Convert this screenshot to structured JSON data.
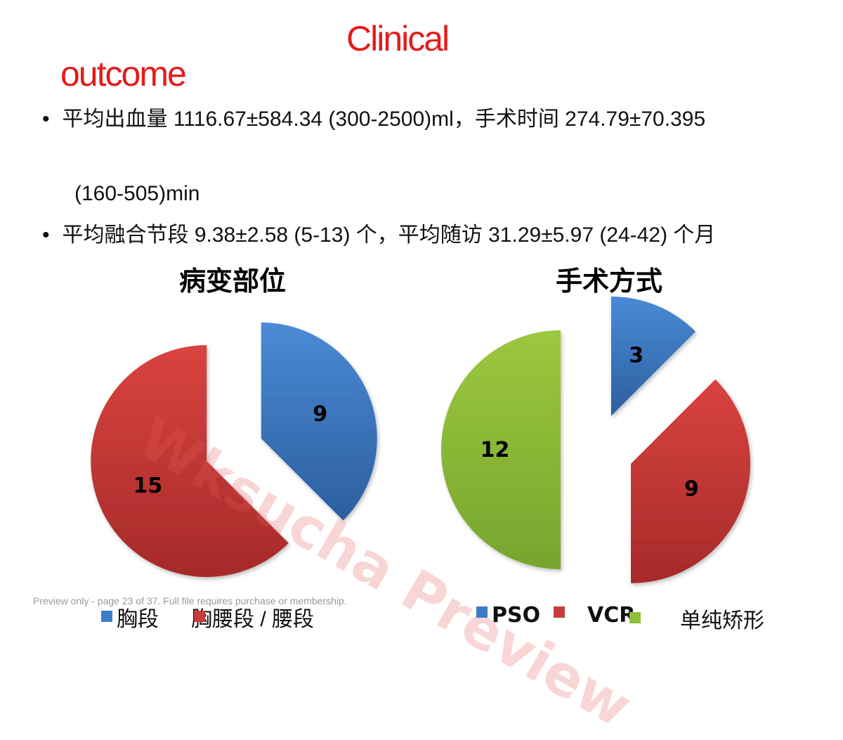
{
  "title": {
    "line1": "Clinical",
    "line2": "outcome"
  },
  "bullets": {
    "b1": "平均出血量 1116.67±584.34 (300-2500)ml，手术时间 274.79±70.395",
    "b1_cont": "(160-505)min",
    "b2": "平均融合节段 9.38±2.58 (5-13) 个，平均随访 31.29±5.97 (24-42) 个月",
    "bullet_symbol": "•"
  },
  "watermark": "Wksucha Preview",
  "preview_note": "Preview only - page 23 of 37. Full file requires purchase or membership.",
  "chart_data": [
    {
      "type": "pie",
      "title": "病变部位",
      "categories": [
        "胸段",
        "胸腰段 / 腰段"
      ],
      "values": [
        9,
        15
      ],
      "colors": [
        "#3d7cc9",
        "#c93b3b"
      ],
      "legend": "bottom"
    },
    {
      "type": "pie",
      "title": "手术方式",
      "categories": [
        "PSO",
        "VCR",
        "单纯矫形"
      ],
      "values": [
        3,
        9,
        12
      ],
      "colors": [
        "#3d7cc9",
        "#c93b3b",
        "#8fbf3a"
      ],
      "legend": "bottom"
    }
  ]
}
